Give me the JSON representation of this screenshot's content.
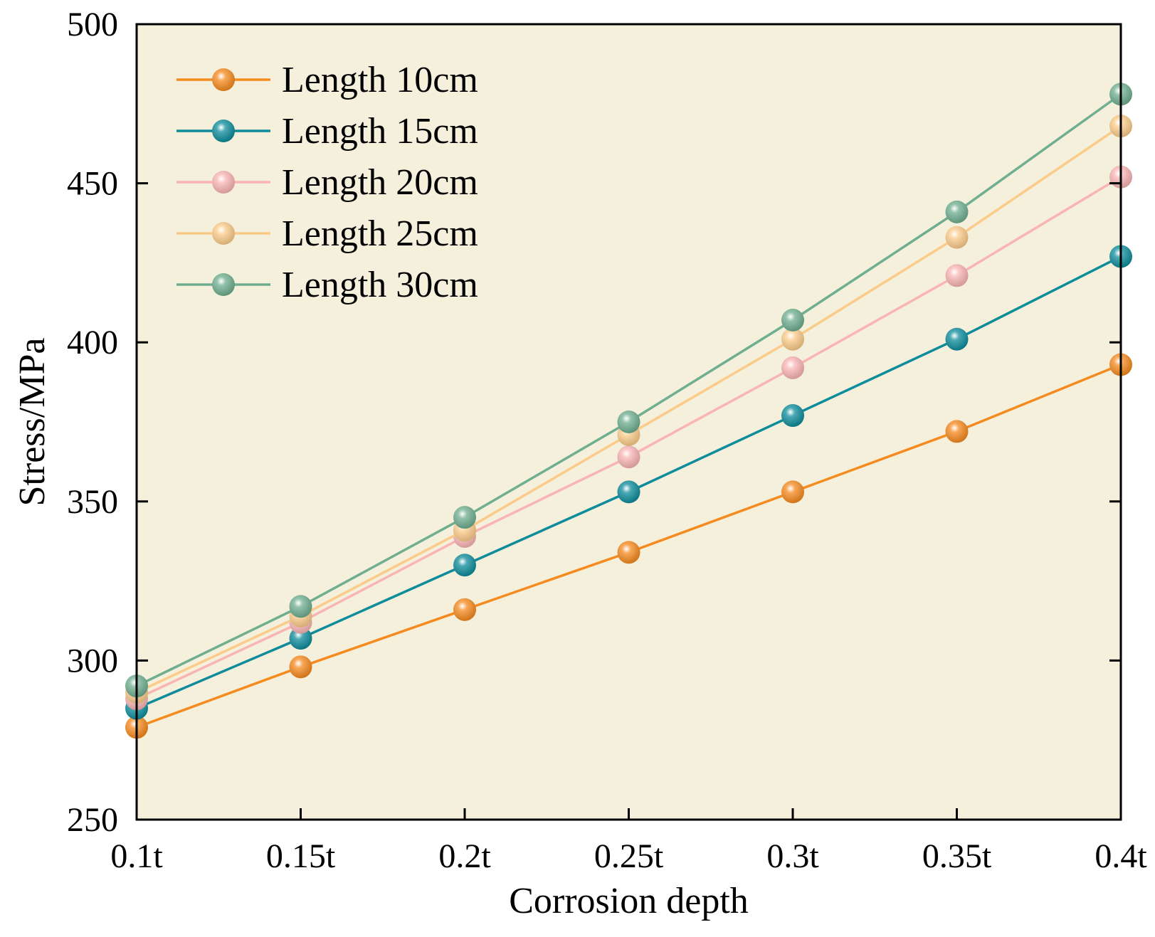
{
  "chart_data": {
    "type": "line",
    "xlabel": "Corrosion depth",
    "ylabel": "Stress/MPa",
    "categories": [
      "0.1t",
      "0.15t",
      "0.2t",
      "0.25t",
      "0.3t",
      "0.35t",
      "0.4t"
    ],
    "ylim": [
      250,
      500
    ],
    "yticks": [
      250,
      300,
      350,
      400,
      450,
      500
    ],
    "grid": false,
    "legend_position": "top-left",
    "background_color": "#F5F0DC",
    "series": [
      {
        "name": "Length 10cm",
        "color": "#F58A1F",
        "values": [
          279,
          298,
          316,
          334,
          353,
          372,
          393
        ]
      },
      {
        "name": "Length 15cm",
        "color": "#0E8C9B",
        "values": [
          285,
          307,
          330,
          353,
          377,
          401,
          427
        ]
      },
      {
        "name": "Length 20cm",
        "color": "#F9B4B4",
        "values": [
          288,
          312,
          339,
          364,
          392,
          421,
          452
        ]
      },
      {
        "name": "Length 25cm",
        "color": "#FBCB8A",
        "values": [
          290,
          314,
          341,
          371,
          401,
          433,
          468
        ]
      },
      {
        "name": "Length 30cm",
        "color": "#6FAE8F",
        "values": [
          292,
          317,
          345,
          375,
          407,
          441,
          478
        ]
      }
    ]
  }
}
